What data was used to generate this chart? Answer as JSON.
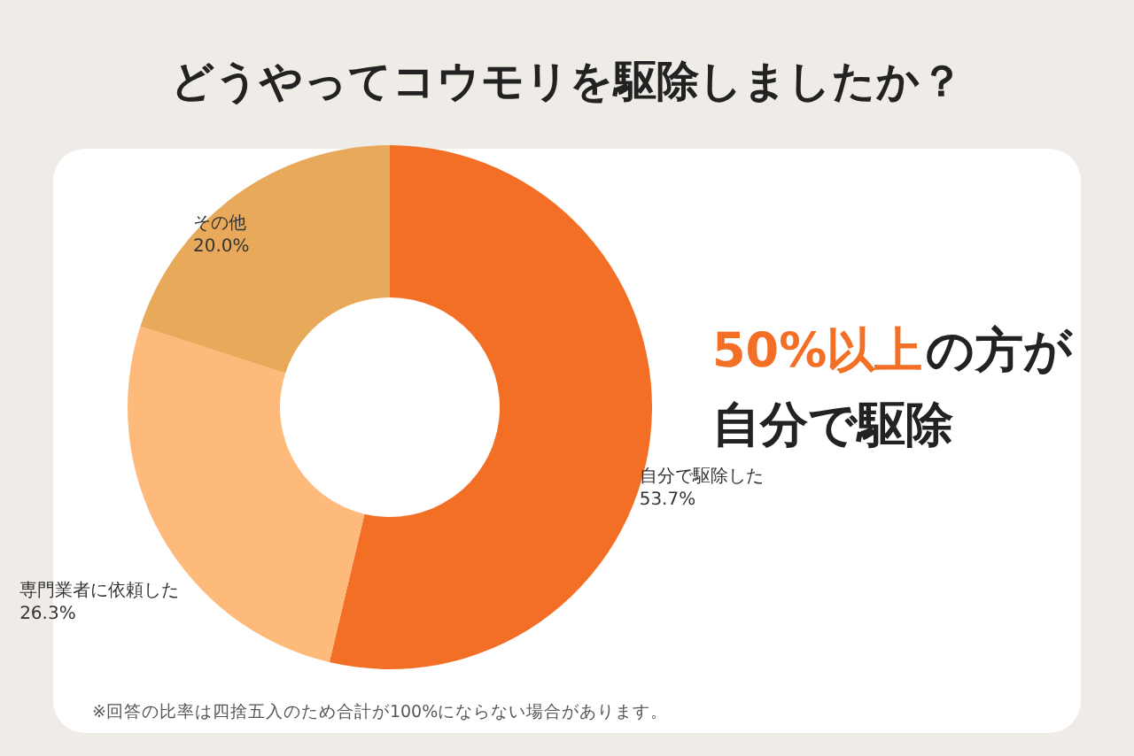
{
  "chart_data": {
    "type": "donut",
    "title": "どうやってコウモリを駆除しましたか？",
    "categories": [
      "自分で駆除した",
      "専門業者に依頼した",
      "その他"
    ],
    "values": [
      53.7,
      26.3,
      20.0
    ],
    "value_labels": [
      "53.7%",
      "26.3%",
      "20.0%"
    ],
    "colors": [
      "#f36f25",
      "#fdba7b",
      "#e8a95a"
    ],
    "annotations": [
      "50%以上",
      "の方が",
      "自分で駆除",
      "※回答の比率は四捨五入のため合計が100%にならない場合があります。"
    ]
  }
}
